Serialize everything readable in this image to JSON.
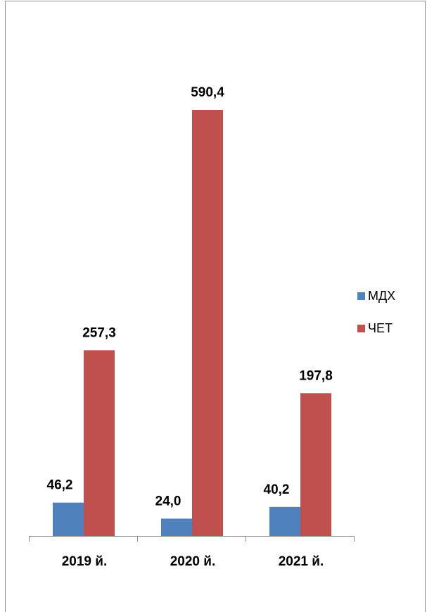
{
  "chart_data": {
    "type": "bar",
    "categories": [
      "2019 й.",
      "2020 й.",
      "2021 й."
    ],
    "series": [
      {
        "name": "МДХ",
        "values": [
          46.2,
          24.0,
          40.2
        ],
        "labels": [
          "46,2",
          "24,0",
          "40,2"
        ],
        "color": "#4f81bd"
      },
      {
        "name": "ЧЕТ",
        "values": [
          257.3,
          590.4,
          197.8
        ],
        "labels": [
          "257,3",
          "590,4",
          "197,8"
        ],
        "color": "#c0504d"
      }
    ],
    "legend": "right",
    "grid": false
  }
}
